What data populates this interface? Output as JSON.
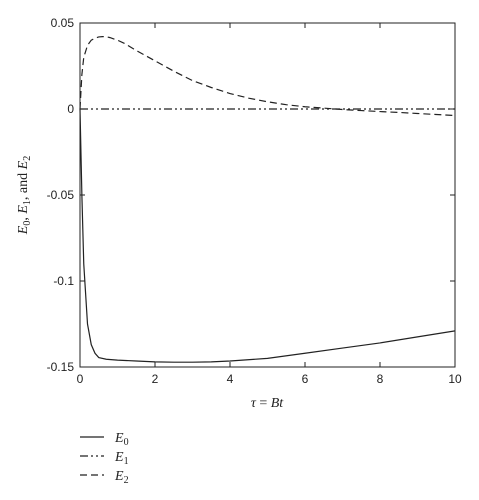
{
  "chart_data": {
    "type": "line",
    "xlabel": "τ = Bt",
    "ylabel": "E0, E1, and E2",
    "xlim": [
      0,
      10
    ],
    "ylim": [
      -0.15,
      0.05
    ],
    "x_ticks": [
      0,
      2,
      4,
      6,
      8,
      10
    ],
    "x_tick_labels": [
      "0",
      "2",
      "4",
      "6",
      "8",
      "10"
    ],
    "y_ticks": [
      0.05,
      0,
      -0.05,
      -0.1,
      -0.15
    ],
    "y_tick_labels": [
      "0.05",
      "0",
      "-0.05",
      "-0.1",
      "-0.15"
    ],
    "grid": false,
    "legend_position": "below-left",
    "series": [
      {
        "name": "E0",
        "line_style": "solid",
        "color": "#222222",
        "x": [
          0,
          0.05,
          0.1,
          0.2,
          0.3,
          0.4,
          0.5,
          0.7,
          1,
          1.5,
          2,
          2.5,
          3,
          3.5,
          4,
          5,
          6,
          7,
          8,
          9,
          10
        ],
        "y": [
          0,
          -0.05,
          -0.09,
          -0.125,
          -0.137,
          -0.142,
          -0.1445,
          -0.1455,
          -0.146,
          -0.1465,
          -0.147,
          -0.1472,
          -0.1472,
          -0.147,
          -0.1465,
          -0.145,
          -0.142,
          -0.139,
          -0.136,
          -0.1325,
          -0.129
        ]
      },
      {
        "name": "E1",
        "line_style": "dash-dot-dot",
        "color": "#222222",
        "x": [
          0,
          10
        ],
        "y": [
          0,
          0
        ]
      },
      {
        "name": "E2",
        "line_style": "dashed",
        "color": "#222222",
        "x": [
          0,
          0.05,
          0.1,
          0.2,
          0.3,
          0.4,
          0.5,
          0.6,
          0.7,
          0.8,
          1,
          1.2,
          1.5,
          2,
          2.5,
          3,
          3.5,
          4,
          4.5,
          5,
          5.5,
          6,
          6.5,
          7,
          7.5,
          8,
          8.5,
          9,
          9.5,
          10
        ],
        "y": [
          0,
          0.02,
          0.03,
          0.037,
          0.04,
          0.0412,
          0.0419,
          0.0421,
          0.042,
          0.0415,
          0.04,
          0.038,
          0.034,
          0.028,
          0.022,
          0.0165,
          0.0125,
          0.009,
          0.0063,
          0.0042,
          0.0025,
          0.0013,
          0.0005,
          -0.0003,
          -0.0009,
          -0.0015,
          -0.002,
          -0.0026,
          -0.0032,
          -0.0038
        ]
      }
    ],
    "legend": [
      {
        "label": "E",
        "sub": "0",
        "line_style": "solid"
      },
      {
        "label": "E",
        "sub": "1",
        "line_style": "dash-dot-dot"
      },
      {
        "label": "E",
        "sub": "2",
        "line_style": "dashed"
      }
    ]
  }
}
